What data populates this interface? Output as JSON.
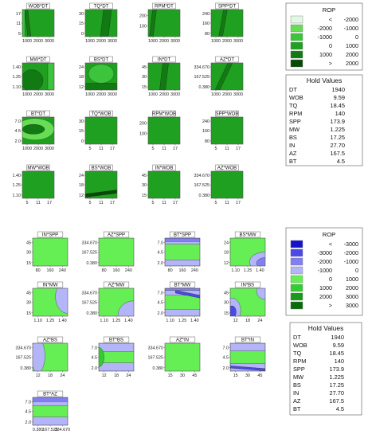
{
  "chart_data": [
    {
      "type": "heatmap",
      "group": "top",
      "legend": {
        "title": "ROP",
        "entries": [
          {
            "lo": "<",
            "hi": "-2000",
            "color": "#e4f7e4"
          },
          {
            "lo": "-2000",
            "hi": "-1000",
            "color": "#66dd55"
          },
          {
            "lo": "-1000",
            "hi": "0",
            "color": "#3cc43c"
          },
          {
            "lo": "0",
            "hi": "1000",
            "color": "#20a020"
          },
          {
            "lo": "1000",
            "hi": "2000",
            "color": "#127a12"
          },
          {
            "lo": ">",
            "hi": "2000",
            "color": "#074a07"
          }
        ]
      },
      "hold_values": {
        "title": "Hold Values",
        "items": [
          {
            "name": "DT",
            "value": "1940"
          },
          {
            "name": "WOB",
            "value": "9.59"
          },
          {
            "name": "TQ",
            "value": "18.45"
          },
          {
            "name": "RPM",
            "value": "140"
          },
          {
            "name": "SPP",
            "value": "173.9"
          },
          {
            "name": "MW",
            "value": "1.225"
          },
          {
            "name": "BS",
            "value": "17.25"
          },
          {
            "name": "IN",
            "value": "27.70"
          },
          {
            "name": "AZ",
            "value": "167.5"
          },
          {
            "name": "BT",
            "value": "4.5"
          }
        ]
      },
      "panels": [
        {
          "title": "WOB*DT",
          "xticks": [
            "1000",
            "2000",
            "3000"
          ],
          "yticks": [
            "17",
            "11",
            "5"
          ],
          "base": 3,
          "regions": [
            {
              "shape": "band",
              "pts": [
                [
                  0.22,
                  0
                ],
                [
                  0.12,
                  1
                ]
              ],
              "w": 0.1,
              "c": 4
            },
            {
              "shape": "rect",
              "x1": 0,
              "x2": 0.08,
              "y1": 0,
              "y2": 1,
              "c": 2
            }
          ]
        },
        {
          "title": "TQ*DT",
          "xticks": [
            "1000",
            "2000",
            "3000"
          ],
          "yticks": [
            "30",
            "15",
            "0"
          ],
          "base": 3,
          "regions": [
            {
              "shape": "band",
              "pts": [
                [
                  0.6,
                  0
                ],
                [
                  0.7,
                  1
                ]
              ],
              "w": 0.25,
              "c": 4
            }
          ]
        },
        {
          "title": "RPM*DT",
          "xticks": [
            "1000",
            "2000",
            "3000"
          ],
          "yticks": [
            "200",
            "100"
          ],
          "base": 3,
          "regions": [
            {
              "shape": "band",
              "pts": [
                [
                  0.1,
                  0
                ],
                [
                  0.2,
                  1
                ]
              ],
              "w": 0.12,
              "c": 4
            }
          ]
        },
        {
          "title": "SPP*DT",
          "xticks": [
            "1000",
            "2000",
            "3000"
          ],
          "yticks": [
            "240",
            "160",
            "80"
          ],
          "base": 3,
          "regions": [
            {
              "shape": "band",
              "pts": [
                [
                  0.3,
                  0
                ],
                [
                  0.45,
                  1
                ]
              ],
              "w": 0.12,
              "c": 4
            }
          ]
        },
        {
          "title": "MW*DT",
          "xticks": [
            "1000",
            "2000",
            "3000"
          ],
          "yticks": [
            "1.40",
            "1.25",
            "1.10"
          ],
          "base": 3,
          "regions": [
            {
              "shape": "ell",
              "cx": 0.3,
              "cy": 0.35,
              "rx": 0.35,
              "ry": 0.4,
              "c": 4
            },
            {
              "shape": "rect",
              "x1": 0.8,
              "x2": 1,
              "y1": 0,
              "y2": 1,
              "c": 2
            }
          ]
        },
        {
          "title": "BS*DT",
          "xticks": [
            "1000",
            "2000",
            "3000"
          ],
          "yticks": [
            "24",
            "18",
            "12"
          ],
          "base": 3,
          "regions": [
            {
              "shape": "rect",
              "x1": 0,
              "x2": 1,
              "y1": 0,
              "y2": 0.25,
              "c": 4
            },
            {
              "shape": "ell",
              "cx": 0.5,
              "cy": 0.6,
              "rx": 0.4,
              "ry": 0.35,
              "c": 2
            }
          ]
        },
        {
          "title": "IN*DT",
          "xticks": [
            "1000",
            "2000",
            "3000"
          ],
          "yticks": [
            "45",
            "30",
            "15"
          ],
          "base": 3,
          "regions": [
            {
              "shape": "band",
              "pts": [
                [
                  0.45,
                  0
                ],
                [
                  0.55,
                  1
                ]
              ],
              "w": 0.18,
              "c": 4
            }
          ]
        },
        {
          "title": "AZ*DT",
          "xticks": [
            "1000",
            "2000",
            "3000"
          ],
          "yticks": [
            "334.670",
            "167.525",
            "0.380"
          ],
          "base": 3,
          "regions": [
            {
              "shape": "band",
              "pts": [
                [
                  0.2,
                  0
                ],
                [
                  0.6,
                  1
                ]
              ],
              "w": 0.15,
              "c": 4
            }
          ]
        },
        {
          "title": "BT*DT",
          "xticks": [
            "1000",
            "2000",
            "3000"
          ],
          "yticks": [
            "7.0",
            "4.5",
            "2.0"
          ],
          "base": 3,
          "regions": [
            {
              "shape": "ell",
              "cx": 0.4,
              "cy": 0.55,
              "rx": 0.6,
              "ry": 0.4,
              "c": 1
            },
            {
              "shape": "ell",
              "cx": 0.35,
              "cy": 0.55,
              "rx": 0.35,
              "ry": 0.18,
              "c": 4
            }
          ]
        },
        {
          "title": "TQ*WOB",
          "xticks": [
            "5",
            "11",
            "17"
          ],
          "yticks": [
            "30",
            "15",
            "0"
          ],
          "base": 3,
          "regions": []
        },
        {
          "title": "RPM*WOB",
          "xticks": [
            "5",
            "11",
            "17"
          ],
          "yticks": [
            "200",
            "100"
          ],
          "base": 3,
          "regions": []
        },
        {
          "title": "SPP*WOB",
          "xticks": [
            "5",
            "11",
            "17"
          ],
          "yticks": [
            "240",
            "160",
            "80"
          ],
          "base": 3,
          "regions": []
        },
        {
          "title": "MW*WOB",
          "xticks": [
            "5",
            "11",
            "17"
          ],
          "yticks": [
            "1.40",
            "1.25",
            "1.10"
          ],
          "base": 3,
          "regions": []
        },
        {
          "title": "BS*WOB",
          "xticks": [
            "5",
            "11",
            "17"
          ],
          "yticks": [
            "24",
            "18",
            "12"
          ],
          "base": 3,
          "regions": [
            {
              "shape": "band",
              "pts": [
                [
                  0,
                  0.1
                ],
                [
                  1,
                  0.25
                ]
              ],
              "w": 0.12,
              "c": 5
            }
          ]
        },
        {
          "title": "IN*WOB",
          "xticks": [
            "5",
            "11",
            "17"
          ],
          "yticks": [
            "45",
            "30",
            "15"
          ],
          "base": 3,
          "regions": []
        },
        {
          "title": "AZ*WOB",
          "xticks": [
            "5",
            "11",
            "17"
          ],
          "yticks": [
            "334.670",
            "167.525",
            "0.380"
          ],
          "base": 3,
          "regions": []
        }
      ]
    },
    {
      "type": "heatmap",
      "group": "bottom",
      "legend": {
        "title": "ROP",
        "entries": [
          {
            "lo": "<",
            "hi": "-3000",
            "color": "#1414c8"
          },
          {
            "lo": "-3000",
            "hi": "-2000",
            "color": "#4a4ae6"
          },
          {
            "lo": "-2000",
            "hi": "-1000",
            "color": "#8080f0"
          },
          {
            "lo": "-1000",
            "hi": "0",
            "color": "#b4b4f8"
          },
          {
            "lo": "0",
            "hi": "1000",
            "color": "#66ee55"
          },
          {
            "lo": "1000",
            "hi": "2000",
            "color": "#33cc33"
          },
          {
            "lo": "2000",
            "hi": "3000",
            "color": "#1a9a1a"
          },
          {
            "lo": ">",
            "hi": "3000",
            "color": "#0a6a0a"
          }
        ]
      },
      "hold_values": {
        "title": "Hold Values",
        "items": [
          {
            "name": "DT",
            "value": "1940"
          },
          {
            "name": "WOB",
            "value": "9.59"
          },
          {
            "name": "TQ",
            "value": "18.45"
          },
          {
            "name": "RPM",
            "value": "140"
          },
          {
            "name": "SPP",
            "value": "173.9"
          },
          {
            "name": "MW",
            "value": "1.225"
          },
          {
            "name": "BS",
            "value": "17.25"
          },
          {
            "name": "IN",
            "value": "27.70"
          },
          {
            "name": "AZ",
            "value": "167.5"
          },
          {
            "name": "BT",
            "value": "4.5"
          }
        ]
      },
      "panels": [
        {
          "title": "IN*SPP",
          "xticks": [
            "80",
            "160",
            "240"
          ],
          "yticks": [
            "45",
            "30",
            "15"
          ],
          "base": 4,
          "regions": []
        },
        {
          "title": "AZ*SPP",
          "xticks": [
            "80",
            "160",
            "240"
          ],
          "yticks": [
            "334.670",
            "167.525",
            "0.380"
          ],
          "base": 4,
          "regions": []
        },
        {
          "title": "BT*SPP",
          "xticks": [
            "80",
            "160",
            "240"
          ],
          "yticks": [
            "7.0",
            "4.5",
            "2.0"
          ],
          "base": 4,
          "regions": [
            {
              "shape": "rect",
              "x1": 0,
              "x2": 1,
              "y1": 0,
              "y2": 0.22,
              "c": 3
            },
            {
              "shape": "rect",
              "x1": 0,
              "x2": 1,
              "y1": 0.78,
              "y2": 1,
              "c": 3
            },
            {
              "shape": "rect",
              "x1": 0,
              "x2": 1,
              "y1": 0.88,
              "y2": 1,
              "c": 2
            }
          ]
        },
        {
          "title": "BS*MW",
          "xticks": [
            "1.10",
            "1.25",
            "1.40"
          ],
          "yticks": [
            "24",
            "18",
            "12"
          ],
          "base": 4,
          "regions": [
            {
              "shape": "ell",
              "cx": 1,
              "cy": 0.15,
              "rx": 0.45,
              "ry": 0.35,
              "c": 3
            },
            {
              "shape": "ell",
              "cx": 1,
              "cy": 0.1,
              "rx": 0.25,
              "ry": 0.2,
              "c": 2
            }
          ]
        },
        {
          "title": "IN*MW",
          "xticks": [
            "1.10",
            "1.25",
            "1.40"
          ],
          "yticks": [
            "45",
            "30",
            "15"
          ],
          "base": 4,
          "regions": [
            {
              "shape": "ell",
              "cx": 1,
              "cy": 0.7,
              "rx": 0.35,
              "ry": 0.6,
              "c": 3
            }
          ]
        },
        {
          "title": "AZ*MW",
          "xticks": [
            "1.10",
            "1.25",
            "1.40"
          ],
          "yticks": [
            "334.670",
            "167.525",
            "0.380"
          ],
          "base": 4,
          "regions": [
            {
              "shape": "ell",
              "cx": 1,
              "cy": 0.05,
              "rx": 0.45,
              "ry": 0.5,
              "c": 3
            }
          ]
        },
        {
          "title": "BT*MW",
          "xticks": [
            "1.10",
            "1.25",
            "1.40"
          ],
          "yticks": [
            "7.0",
            "4.5",
            "2.0"
          ],
          "base": 4,
          "regions": [
            {
              "shape": "rect",
              "x1": 0,
              "x2": 1,
              "y1": 0.75,
              "y2": 1,
              "c": 3
            },
            {
              "shape": "rect",
              "x1": 0,
              "x2": 1,
              "y1": 0,
              "y2": 0.25,
              "c": 3
            },
            {
              "shape": "band",
              "pts": [
                [
                  0.3,
                  0.88
                ],
                [
                  1,
                  0.7
                ]
              ],
              "w": 0.1,
              "c": 1
            },
            {
              "shape": "rect",
              "x1": 0,
              "x2": 1,
              "y1": 0.92,
              "y2": 1,
              "c": 2
            }
          ]
        },
        {
          "title": "IN*BS",
          "xticks": [
            "12",
            "18",
            "24"
          ],
          "yticks": [
            "45",
            "30",
            "15"
          ],
          "base": 4,
          "regions": [
            {
              "shape": "ell",
              "cx": 0.05,
              "cy": 0.2,
              "rx": 0.25,
              "ry": 0.45,
              "c": 3
            },
            {
              "shape": "ell",
              "cx": 0.05,
              "cy": 0.15,
              "rx": 0.12,
              "ry": 0.22,
              "c": 1
            },
            {
              "shape": "ell",
              "cx": 1,
              "cy": 0.9,
              "rx": 0.25,
              "ry": 0.3,
              "c": 3
            }
          ]
        },
        {
          "title": "AZ*BS",
          "xticks": [
            "12",
            "18",
            "24"
          ],
          "yticks": [
            "334.670",
            "167.525",
            "0.380"
          ],
          "base": 4,
          "regions": [
            {
              "shape": "ell",
              "cx": 0.15,
              "cy": 0.55,
              "rx": 0.2,
              "ry": 0.6,
              "c": 3
            }
          ]
        },
        {
          "title": "BT*BS",
          "xticks": [
            "12",
            "18",
            "24"
          ],
          "yticks": [
            "7.0",
            "4.5",
            "2.0"
          ],
          "base": 4,
          "regions": [
            {
              "shape": "rect",
              "x1": 0,
              "x2": 1,
              "y1": 0,
              "y2": 0.3,
              "c": 3
            },
            {
              "shape": "rect",
              "x1": 0,
              "x2": 1,
              "y1": 0.7,
              "y2": 1,
              "c": 3
            },
            {
              "shape": "ell",
              "cx": 0,
              "cy": 0.5,
              "rx": 0.15,
              "ry": 0.35,
              "c": 5
            }
          ]
        },
        {
          "title": "AZ*IN",
          "xticks": [
            "15",
            "30",
            "45"
          ],
          "yticks": [
            "334.670",
            "167.525",
            "0.380"
          ],
          "base": 4,
          "regions": []
        },
        {
          "title": "BT*IN",
          "xticks": [
            "15",
            "30",
            "45"
          ],
          "yticks": [
            "7.0",
            "4.5",
            "2.0"
          ],
          "base": 4,
          "regions": [
            {
              "shape": "rect",
              "x1": 0,
              "x2": 1,
              "y1": 0,
              "y2": 0.28,
              "c": 3
            },
            {
              "shape": "rect",
              "x1": 0,
              "x2": 1,
              "y1": 0.72,
              "y2": 1,
              "c": 3
            },
            {
              "shape": "band",
              "pts": [
                [
                  0,
                  0.15
                ],
                [
                  1,
                  0.05
                ]
              ],
              "w": 0.08,
              "c": 1
            }
          ]
        },
        {
          "title": "BT*AZ",
          "xticks": [
            "0.380",
            "167.525",
            "334.670"
          ],
          "yticks": [
            "7.0",
            "4.5",
            "2.0"
          ],
          "base": 4,
          "regions": [
            {
              "shape": "rect",
              "x1": 0,
              "x2": 1,
              "y1": 0,
              "y2": 0.3,
              "c": 3
            },
            {
              "shape": "rect",
              "x1": 0,
              "x2": 1,
              "y1": 0.7,
              "y2": 1,
              "c": 3
            },
            {
              "shape": "rect",
              "x1": 0,
              "x2": 1,
              "y1": 0.85,
              "y2": 1,
              "c": 2
            }
          ]
        }
      ]
    }
  ]
}
